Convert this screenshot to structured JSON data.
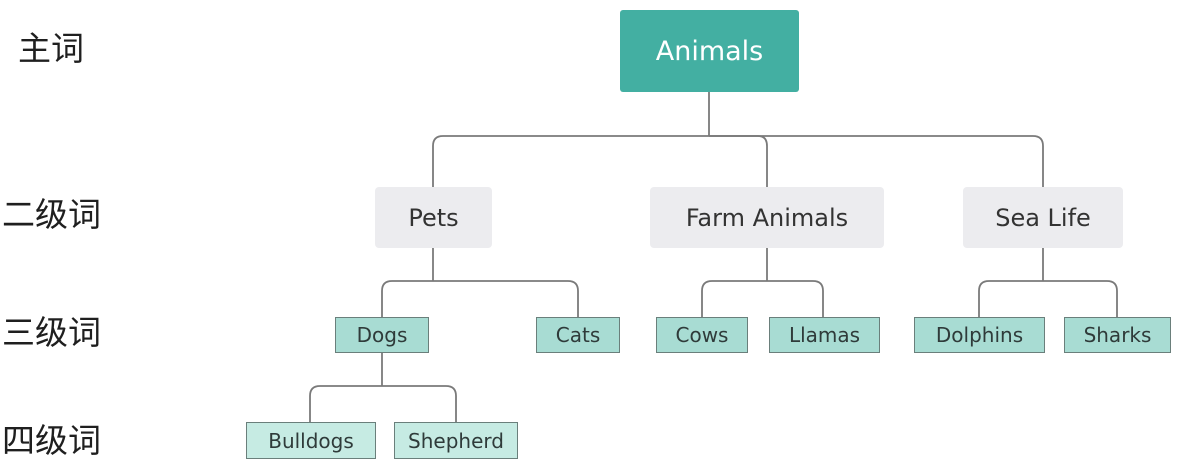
{
  "level_labels": {
    "main": "主词",
    "second": "二级词",
    "third": "三级词",
    "fourth": "四级词"
  },
  "tree": {
    "root": "Animals",
    "pets": "Pets",
    "farm_animals": "Farm Animals",
    "sea_life": "Sea Life",
    "dogs": "Dogs",
    "cats": "Cats",
    "cows": "Cows",
    "llamas": "Llamas",
    "dolphins": "Dolphins",
    "sharks": "Sharks",
    "bulldogs": "Bulldogs",
    "shepherd": "Shepherd"
  },
  "colors": {
    "root_fill": "#43afa2",
    "level2_fill": "#ececef",
    "level3_fill": "#a8dcd3",
    "level4_fill": "#c6ebe3",
    "connector": "#7a7a7a"
  }
}
